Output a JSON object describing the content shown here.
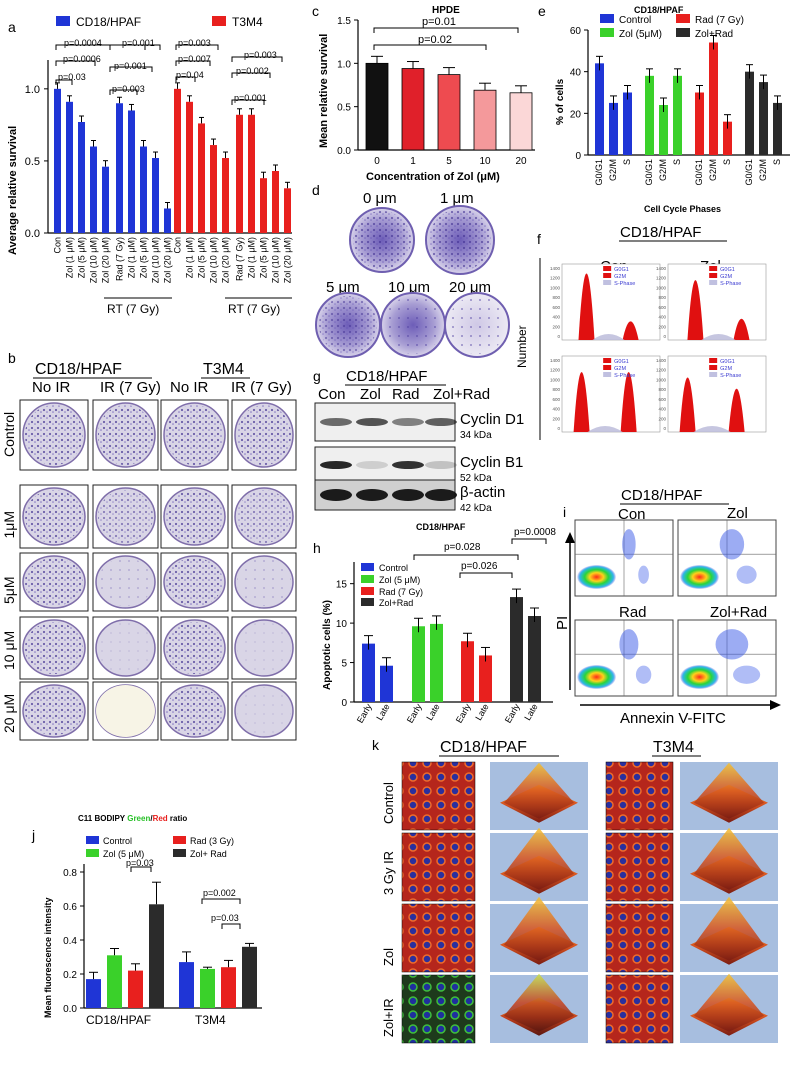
{
  "panel_letters": [
    "a",
    "b",
    "c",
    "d",
    "e",
    "f",
    "g",
    "h",
    "i",
    "j",
    "k"
  ],
  "colors": {
    "blue": "#1f35d6",
    "red": "#e8201e",
    "green": "#3ad12a",
    "black": "#2b2b2b",
    "pink_dark": "#e0202a",
    "pink_mid": "#ee4b50",
    "pink_light": "#f4999b",
    "pink_pale": "#fbd7d7",
    "k_bg": "#a7bedf"
  },
  "a": {
    "legend": [
      "CD18/HPAF",
      "T3M4"
    ],
    "ylabel": "Average relative survival",
    "yticks": [
      "0.0",
      "0.5",
      "1.0"
    ],
    "pvalues": [
      "p=0.0004",
      "p=0.0006",
      "p=0.03",
      "p=0.001",
      "p=0.001",
      "p=0.003",
      "p=0.003",
      "p=0.007",
      "p=0.04",
      "p=0.003",
      "p=0.002",
      "p=0.001"
    ],
    "rt_label": "RT (7 Gy)"
  },
  "b": {
    "groups": [
      "CD18/HPAF",
      "T3M4"
    ],
    "cols": [
      "No IR",
      "IR  (7 Gy)",
      "No IR",
      "IR  (7 Gy)"
    ],
    "rows": [
      "Control",
      "1μM",
      "5μM",
      "10 μM",
      "20 μM"
    ]
  },
  "c": {
    "title": "HPDE",
    "pvalues": [
      "p=0.01",
      "p=0.02"
    ],
    "ylabel": "Mean relative survival",
    "xlabel": "Concentration of Zol (μM)",
    "yticks": [
      "0.0",
      "0.5",
      "1.0",
      "1.5"
    ]
  },
  "d": {
    "labels": [
      "0 μm",
      "1 μm",
      "5 μm",
      "10 μm",
      "20 μm"
    ]
  },
  "e": {
    "title": "CD18/HPAF",
    "legend": [
      "Control",
      "Rad (7 Gy)",
      "Zol (5μM)",
      "Zol+Rad"
    ],
    "ylabel": "% of cells",
    "xlabel": "Cell Cycle Phases",
    "yticks": [
      "0",
      "20",
      "40",
      "60"
    ],
    "phases": [
      "G0/G1",
      "G2/M",
      "S"
    ]
  },
  "f": {
    "title": "CD18/HPAF",
    "panels": [
      "Con",
      "Zol",
      "Rad",
      "Zol+Rad"
    ],
    "legend": [
      "G0G1",
      "G2M",
      "S-Phase"
    ],
    "ylabel": "Number",
    "yticks": [
      "1400",
      "1200",
      "1000",
      "800",
      "600",
      "400",
      "200",
      "0"
    ]
  },
  "g": {
    "title": "CD18/HPAF",
    "lanes": [
      "Con",
      "Zol",
      "Rad",
      "Zol+Rad"
    ],
    "bands": [
      {
        "name": "Cyclin D1",
        "kda": "34 kDa"
      },
      {
        "name": "Cyclin B1",
        "kda": "52 kDa"
      },
      {
        "name": "β-actin",
        "kda": "42 kDa"
      }
    ]
  },
  "h": {
    "title": "CD18/HPAF",
    "legend": [
      "Control",
      "Zol (5 μM)",
      "Rad (7 Gy)",
      "Zol+Rad"
    ],
    "pvalues": [
      "p=0.0008",
      "p=0.028",
      "p=0.026"
    ],
    "ylabel": "Apoptotic cells (%)",
    "yticks": [
      "0",
      "5",
      "10",
      "15"
    ],
    "xcats": [
      "Early",
      "Late"
    ]
  },
  "i": {
    "title": "CD18/HPAF",
    "panels": [
      "Con",
      "Zol",
      "Rad",
      "Zol+Rad"
    ],
    "ylabel": "PI",
    "xlabel": "Annexin  V-FITC"
  },
  "j": {
    "title_pre": "C11 BODIPY ",
    "title_green": "Green",
    "title_slash": "/",
    "title_red": "Red",
    "title_post": " ratio",
    "legend": [
      "Control",
      "Rad (3 Gy)",
      "Zol (5 μM)",
      "Zol+ Rad"
    ],
    "pvalues": [
      "p=0.03",
      "p=0.002",
      "p=0.03"
    ],
    "ylabel": "Mean fluorescence intensity",
    "yticks": [
      "0.0",
      "0.2",
      "0.4",
      "0.6",
      "0.8"
    ],
    "groups": [
      "CD18/HPAF",
      "T3M4"
    ]
  },
  "k": {
    "groups": [
      "CD18/HPAF",
      "T3M4"
    ],
    "rows": [
      "Control",
      "3 Gy IR",
      "Zol",
      "Zol+IR"
    ]
  },
  "chart_data": [
    {
      "panel": "a",
      "type": "bar",
      "ylabel": "Average relative survival",
      "ylim": [
        0,
        1.2
      ],
      "categories": [
        "Con",
        "Zol (1 μM)",
        "Zol (5 μM)",
        "Zol (10 μM)",
        "Zol (20 μM)",
        "Rad (7 Gy)",
        "Zol (1 μM)",
        "Zol (5 μM)",
        "Zol (10 μM)",
        "Zol (20 μM)"
      ],
      "series": [
        {
          "name": "CD18/HPAF",
          "values": [
            1.0,
            0.91,
            0.77,
            0.6,
            0.46,
            0.9,
            0.85,
            0.6,
            0.52,
            0.17
          ]
        },
        {
          "name": "T3M4",
          "values": [
            1.0,
            0.91,
            0.76,
            0.61,
            0.52,
            0.82,
            0.82,
            0.38,
            0.43,
            0.31
          ]
        }
      ],
      "xgroup_label": "RT (7 Gy)"
    },
    {
      "panel": "c",
      "type": "bar",
      "title": "HPDE",
      "ylabel": "Mean relative survival",
      "xlabel": "Concentration of Zol (μM)",
      "ylim": [
        0,
        1.5
      ],
      "categories": [
        "0",
        "1",
        "5",
        "10",
        "20"
      ],
      "values": [
        1.0,
        0.94,
        0.87,
        0.69,
        0.66
      ]
    },
    {
      "panel": "e",
      "type": "bar",
      "title": "CD18/HPAF",
      "ylabel": "% of cells",
      "xlabel": "Cell Cycle Phases",
      "ylim": [
        0,
        60
      ],
      "categories": [
        "G0/G1",
        "G2/M",
        "S"
      ],
      "series": [
        {
          "name": "Control",
          "values": [
            44,
            25,
            30
          ]
        },
        {
          "name": "Zol (5μM)",
          "values": [
            38,
            24,
            38
          ]
        },
        {
          "name": "Rad (7 Gy)",
          "values": [
            30,
            54,
            16
          ]
        },
        {
          "name": "Zol+Rad",
          "values": [
            40,
            35,
            25
          ]
        }
      ]
    },
    {
      "panel": "h",
      "type": "bar",
      "title": "CD18/HPAF",
      "ylabel": "Apoptotic cells (%)",
      "ylim": [
        0,
        18
      ],
      "categories": [
        "Early",
        "Late"
      ],
      "series": [
        {
          "name": "Control",
          "values": [
            7.4,
            4.6
          ]
        },
        {
          "name": "Zol (5 μM)",
          "values": [
            9.6,
            9.9
          ]
        },
        {
          "name": "Rad (7 Gy)",
          "values": [
            7.7,
            5.9
          ]
        },
        {
          "name": "Zol+Rad",
          "values": [
            13.3,
            10.9
          ]
        }
      ]
    },
    {
      "panel": "j",
      "type": "bar",
      "ylabel": "Mean fluorescence intensity",
      "ylim": [
        0,
        0.8
      ],
      "categories": [
        "CD18/HPAF",
        "T3M4"
      ],
      "series": [
        {
          "name": "Control",
          "values": [
            0.17,
            0.27
          ]
        },
        {
          "name": "Zol (5 μM)",
          "values": [
            0.31,
            0.23
          ]
        },
        {
          "name": "Rad (3 Gy)",
          "values": [
            0.22,
            0.24
          ]
        },
        {
          "name": "Zol+ Rad",
          "values": [
            0.61,
            0.36
          ]
        }
      ]
    }
  ]
}
